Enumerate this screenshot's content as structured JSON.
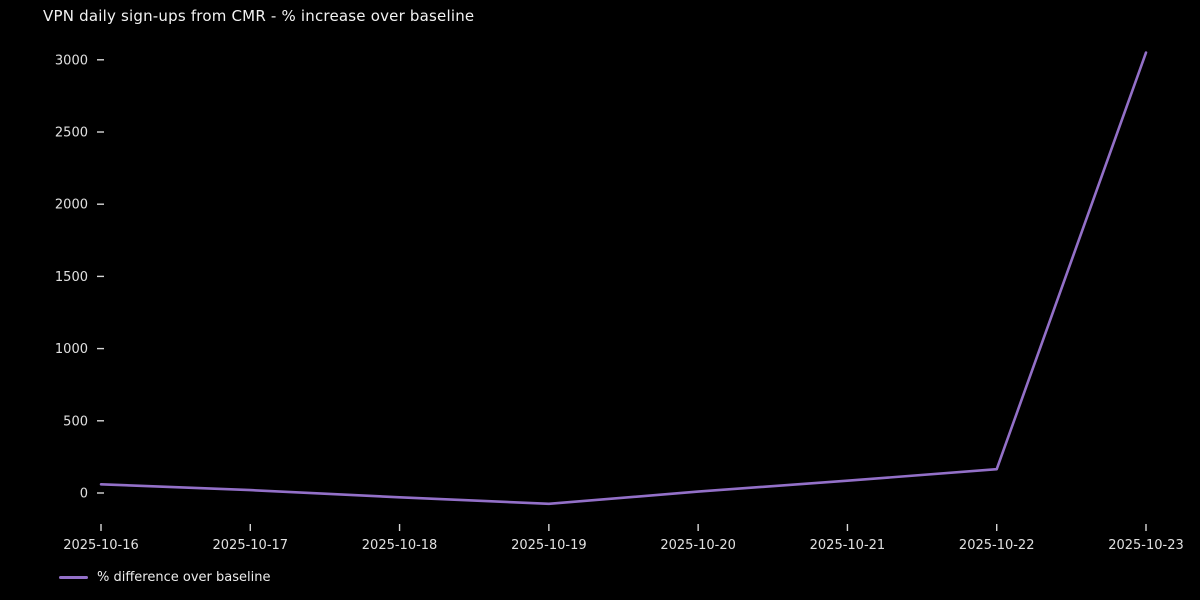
{
  "chart_data": {
    "type": "line",
    "title": "VPN daily sign-ups from CMR - % increase over baseline",
    "x": [
      "2025-10-16",
      "2025-10-17",
      "2025-10-18",
      "2025-10-19",
      "2025-10-20",
      "2025-10-21",
      "2025-10-22",
      "2025-10-23"
    ],
    "series": [
      {
        "name": "% difference over baseline",
        "values": [
          60,
          20,
          -30,
          -75,
          10,
          85,
          165,
          3050
        ],
        "color": "#9370c8"
      }
    ],
    "yticks": [
      0,
      500,
      1000,
      1500,
      2000,
      2500,
      3000
    ],
    "ylim": [
      -160,
      3130
    ],
    "grid": false,
    "legend_position": "bottom-left",
    "background_color": "#000000",
    "text_color": "#e0e0e0"
  },
  "legend": {
    "label": "% difference over baseline"
  }
}
